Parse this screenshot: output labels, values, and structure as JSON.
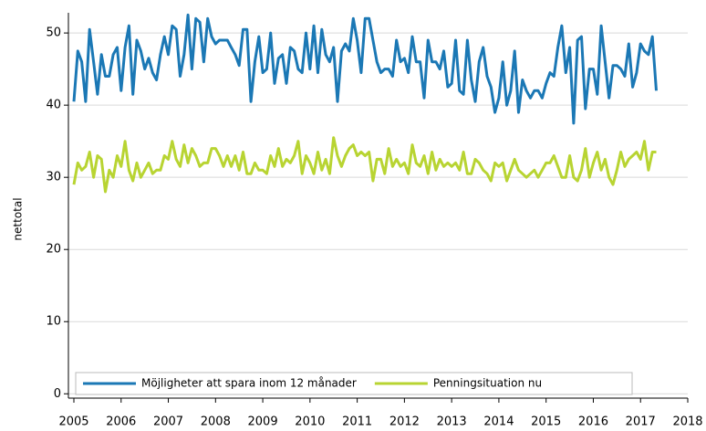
{
  "chart_data": {
    "type": "line",
    "y_label": "nettotal",
    "x": [
      2005,
      2005.083,
      2005.167,
      2005.25,
      2005.333,
      2005.417,
      2005.5,
      2005.583,
      2005.667,
      2005.75,
      2005.833,
      2005.917,
      2006,
      2006.083,
      2006.167,
      2006.25,
      2006.333,
      2006.417,
      2006.5,
      2006.583,
      2006.667,
      2006.75,
      2006.833,
      2006.917,
      2007,
      2007.083,
      2007.167,
      2007.25,
      2007.333,
      2007.417,
      2007.5,
      2007.583,
      2007.667,
      2007.75,
      2007.833,
      2007.917,
      2008,
      2008.083,
      2008.167,
      2008.25,
      2008.333,
      2008.417,
      2008.5,
      2008.583,
      2008.667,
      2008.75,
      2008.833,
      2008.917,
      2009,
      2009.083,
      2009.167,
      2009.25,
      2009.333,
      2009.417,
      2009.5,
      2009.583,
      2009.667,
      2009.75,
      2009.833,
      2009.917,
      2010,
      2010.083,
      2010.167,
      2010.25,
      2010.333,
      2010.417,
      2010.5,
      2010.583,
      2010.667,
      2010.75,
      2010.833,
      2010.917,
      2011,
      2011.083,
      2011.167,
      2011.25,
      2011.333,
      2011.417,
      2011.5,
      2011.583,
      2011.667,
      2011.75,
      2011.833,
      2011.917,
      2012,
      2012.083,
      2012.167,
      2012.25,
      2012.333,
      2012.417,
      2012.5,
      2012.583,
      2012.667,
      2012.75,
      2012.833,
      2012.917,
      2013,
      2013.083,
      2013.167,
      2013.25,
      2013.333,
      2013.417,
      2013.5,
      2013.583,
      2013.667,
      2013.75,
      2013.833,
      2013.917,
      2014,
      2014.083,
      2014.167,
      2014.25,
      2014.333,
      2014.417,
      2014.5,
      2014.583,
      2014.667,
      2014.75,
      2014.833,
      2014.917,
      2015,
      2015.083,
      2015.167,
      2015.25,
      2015.333,
      2015.417,
      2015.5,
      2015.583,
      2015.667,
      2015.75,
      2015.833,
      2015.917,
      2016,
      2016.083,
      2016.167,
      2016.25,
      2016.333,
      2016.417,
      2016.5,
      2016.583,
      2016.667,
      2016.75,
      2016.833,
      2016.917,
      2017,
      2017.083,
      2017.167,
      2017.25,
      2017.333
    ],
    "series": [
      {
        "name": "Möjligheter att spara inom 12 månader",
        "color": "#1b78b5",
        "values": [
          40.5,
          47.5,
          46,
          40.5,
          50.5,
          46,
          41.5,
          47,
          44,
          44,
          47,
          48,
          42,
          48,
          51,
          41.5,
          49,
          47.5,
          45,
          46.5,
          44.5,
          43.5,
          47,
          49.5,
          47,
          51,
          50.5,
          44,
          47,
          52.5,
          45,
          52,
          51.5,
          46,
          52,
          49.5,
          48.5,
          49,
          49,
          49,
          48,
          47,
          45.5,
          50.5,
          50.5,
          40.5,
          46,
          49.5,
          44.5,
          45,
          50,
          43,
          46.5,
          47,
          43,
          48,
          47.5,
          45,
          44.5,
          50,
          45,
          51,
          44.5,
          50.5,
          47,
          46,
          48,
          40.5,
          47.5,
          48.5,
          47.5,
          52,
          49,
          44.5,
          52,
          52,
          49,
          46,
          44.5,
          45,
          45,
          44,
          49,
          46,
          46.5,
          44.5,
          49.5,
          46,
          46,
          41,
          49,
          46,
          46,
          45,
          47.5,
          42.5,
          43,
          49,
          42,
          41.5,
          49,
          43.5,
          40.5,
          46,
          48,
          44,
          42.5,
          39,
          41,
          46,
          40,
          42,
          47.5,
          39,
          43.5,
          42,
          41,
          42,
          42,
          41,
          43,
          44.5,
          44,
          48,
          51,
          44.5,
          48,
          37.5,
          49,
          49.5,
          39.5,
          45,
          45,
          41.5,
          51,
          46,
          41,
          45.5,
          45.5,
          45,
          44,
          48.5,
          42.5,
          44.5,
          48.5,
          47.5,
          47,
          49.5,
          42
        ]
      },
      {
        "name": "Penningsituation nu",
        "color": "#b8d432",
        "values": [
          29,
          32,
          31,
          31.5,
          33.5,
          30,
          33,
          32.5,
          28,
          31,
          30,
          33,
          31.5,
          35,
          31,
          29.5,
          32,
          30,
          31,
          32,
          30.5,
          31,
          31,
          33,
          32.5,
          35,
          32.5,
          31.5,
          34.5,
          32,
          34,
          33,
          31.5,
          32,
          32,
          34,
          34,
          33,
          31.5,
          33,
          31.5,
          33,
          31,
          33.5,
          30.5,
          30.5,
          32,
          31,
          31,
          30.5,
          33,
          31.5,
          34,
          31.5,
          32.5,
          32,
          33,
          35,
          30.5,
          33,
          32,
          30.5,
          33.5,
          31,
          32.5,
          30.5,
          35.5,
          33,
          31.5,
          33,
          34,
          34.5,
          33,
          33.5,
          33,
          33.5,
          29.5,
          32.5,
          32.5,
          30.5,
          34,
          31.5,
          32.5,
          31.5,
          32,
          30.5,
          34.5,
          32,
          31.5,
          33,
          30.5,
          33.5,
          31,
          32.5,
          31.5,
          32,
          31.5,
          32,
          31,
          33.5,
          30.5,
          30.5,
          32.5,
          32,
          31,
          30.5,
          29.5,
          32,
          31.5,
          32,
          29.5,
          31,
          32.5,
          31,
          30.5,
          30,
          30.5,
          31,
          30,
          31,
          32,
          32,
          33,
          31.5,
          30,
          30,
          33,
          30,
          29.5,
          31,
          34,
          30,
          32,
          33.5,
          31,
          32.5,
          30,
          29,
          31,
          33.5,
          31.5,
          32.5,
          33,
          33.5,
          32.5,
          35,
          31,
          33.5,
          33.5
        ]
      }
    ],
    "xlim": [
      2005,
      2018
    ],
    "xticks": [
      2005,
      2006,
      2007,
      2008,
      2009,
      2010,
      2011,
      2012,
      2013,
      2014,
      2015,
      2016,
      2017,
      2018
    ],
    "ylim": [
      -0.6,
      52.8
    ],
    "yticks": [
      0,
      10,
      20,
      30,
      40,
      50
    ],
    "grid": true,
    "legend": "lower left"
  }
}
